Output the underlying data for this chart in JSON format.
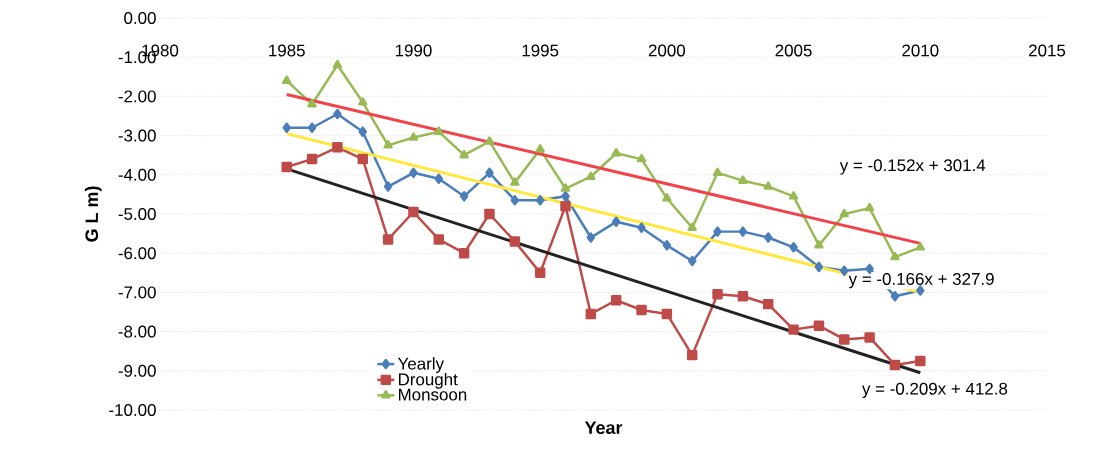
{
  "chart_data": {
    "type": "line",
    "xlabel": "Year",
    "ylabel": "G L m)",
    "x": [
      1985,
      1986,
      1987,
      1988,
      1989,
      1990,
      1991,
      1992,
      1993,
      1994,
      1995,
      1996,
      1997,
      1998,
      1999,
      2000,
      2001,
      2002,
      2003,
      2004,
      2005,
      2006,
      2007,
      2008,
      2009,
      2010
    ],
    "series": [
      {
        "name": "Yearly",
        "color": "#4a7ebb",
        "marker": "diamond",
        "values": [
          -2.8,
          -2.8,
          -2.45,
          -2.9,
          -4.3,
          -3.95,
          -4.1,
          -4.55,
          -3.95,
          -4.65,
          -4.65,
          -4.55,
          -5.6,
          -5.2,
          -5.35,
          -5.8,
          -6.2,
          -5.45,
          -5.45,
          -5.6,
          -5.85,
          -6.35,
          -6.45,
          -6.4,
          -7.1,
          -6.95
        ]
      },
      {
        "name": "Drought",
        "color": "#be4b48",
        "marker": "square",
        "values": [
          -3.8,
          -3.6,
          -3.3,
          -3.6,
          -5.65,
          -4.95,
          -5.65,
          -6.0,
          -5.0,
          -5.7,
          -6.5,
          -4.8,
          -7.55,
          -7.2,
          -7.45,
          -7.55,
          -8.6,
          -7.05,
          -7.1,
          -7.3,
          -7.95,
          -7.85,
          -8.2,
          -8.15,
          -8.85,
          -8.75
        ]
      },
      {
        "name": "Monsoon",
        "color": "#98b954",
        "marker": "triangle",
        "values": [
          -1.6,
          -2.2,
          -1.2,
          -2.15,
          -3.25,
          -3.05,
          -2.9,
          -3.5,
          -3.15,
          -4.2,
          -3.35,
          -4.35,
          -4.05,
          -3.45,
          -3.6,
          -4.6,
          -5.35,
          -3.95,
          -4.15,
          -4.3,
          -4.55,
          -5.8,
          -5.0,
          -4.85,
          -6.1,
          -5.85
        ]
      },
      {
        "type": "line",
        "color": "#f0434a",
        "marker": "none",
        "values": [
          -1.95,
          null,
          null,
          null,
          null,
          null,
          null,
          null,
          null,
          null,
          null,
          null,
          null,
          null,
          null,
          null,
          null,
          null,
          null,
          null,
          null,
          null,
          null,
          null,
          null,
          -5.75
        ]
      },
      {
        "type": "line",
        "color": "#ffe83a",
        "marker": "none",
        "values": [
          -2.95,
          null,
          null,
          null,
          null,
          null,
          null,
          null,
          null,
          null,
          null,
          null,
          null,
          null,
          null,
          null,
          null,
          null,
          null,
          null,
          null,
          null,
          null,
          null,
          null,
          -7.0
        ]
      },
      {
        "type": "line",
        "color": "#222222",
        "marker": "none",
        "values": [
          -3.85,
          null,
          null,
          null,
          null,
          null,
          null,
          null,
          null,
          null,
          null,
          null,
          null,
          null,
          null,
          null,
          null,
          null,
          null,
          null,
          null,
          null,
          null,
          null,
          null,
          -9.05
        ]
      }
    ],
    "annotations": [
      "y = -0.152x + 301.4",
      "y = -0.166x + 327.9",
      "y = -0.209x + 412.8"
    ],
    "xlim": [
      1980,
      2015
    ],
    "xticks": [
      1980,
      1985,
      1990,
      1995,
      2000,
      2005,
      2010,
      2015
    ],
    "ylim": [
      -10,
      0
    ],
    "yticks": [
      {
        "value": 0,
        "label": "0.00"
      },
      {
        "value": -1,
        "label": "-1.00"
      },
      {
        "value": -2,
        "label": "-2.00"
      },
      {
        "value": -3,
        "label": "-3.00"
      },
      {
        "value": -4,
        "label": "-4.00"
      },
      {
        "value": -5,
        "label": "-5.00"
      },
      {
        "value": -6,
        "label": "-6.00"
      },
      {
        "value": -7,
        "label": "-7.00"
      },
      {
        "value": -8,
        "label": "-8.00"
      },
      {
        "value": -9,
        "label": "-9.00"
      },
      {
        "value": -10,
        "label": "-10.00"
      }
    ],
    "grid": "y",
    "legend": "bottom left"
  }
}
